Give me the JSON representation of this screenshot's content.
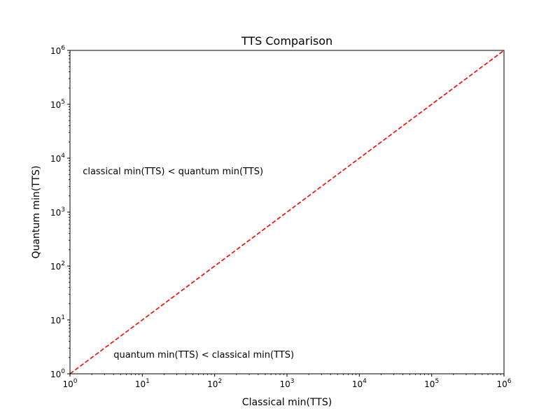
{
  "chart_data": {
    "type": "line",
    "title": "TTS Comparison",
    "xlabel": "Classical min(TTS)",
    "ylabel": "Quantum min(TTS)",
    "xscale": "log",
    "yscale": "log",
    "xlim": [
      1,
      1000000
    ],
    "ylim": [
      1,
      1000000
    ],
    "x_ticks": [
      {
        "base": "10",
        "exp": "0",
        "value": 1
      },
      {
        "base": "10",
        "exp": "1",
        "value": 10
      },
      {
        "base": "10",
        "exp": "2",
        "value": 100
      },
      {
        "base": "10",
        "exp": "3",
        "value": 1000
      },
      {
        "base": "10",
        "exp": "4",
        "value": 10000
      },
      {
        "base": "10",
        "exp": "5",
        "value": 100000
      },
      {
        "base": "10",
        "exp": "6",
        "value": 1000000
      }
    ],
    "y_ticks": [
      {
        "base": "10",
        "exp": "0",
        "value": 1
      },
      {
        "base": "10",
        "exp": "1",
        "value": 10
      },
      {
        "base": "10",
        "exp": "2",
        "value": 100
      },
      {
        "base": "10",
        "exp": "3",
        "value": 1000
      },
      {
        "base": "10",
        "exp": "4",
        "value": 10000
      },
      {
        "base": "10",
        "exp": "5",
        "value": 100000
      },
      {
        "base": "10",
        "exp": "6",
        "value": 1000000
      }
    ],
    "series": [
      {
        "x": [
          1,
          1000000
        ],
        "y": [
          1,
          1000000
        ],
        "color": "#ff0000",
        "style": "dashed"
      }
    ],
    "annotations": [
      {
        "text": "classical min(TTS) < quantum min(TTS)",
        "x": 1.5,
        "y": 5000
      },
      {
        "text": "quantum min(TTS) < classical min(TTS)",
        "x": 4,
        "y": 2
      }
    ],
    "grid": false,
    "legend": "none"
  }
}
